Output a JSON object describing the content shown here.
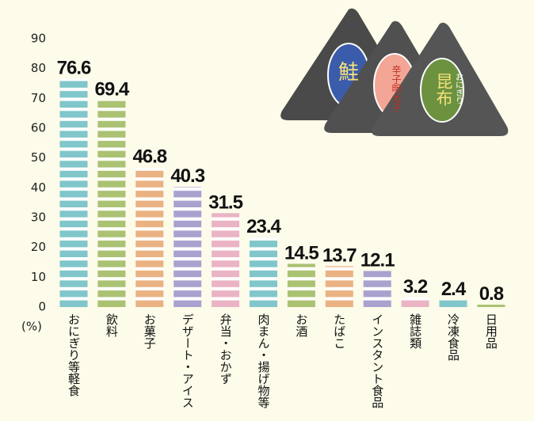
{
  "chart_data": {
    "type": "bar",
    "y_unit": "(%)",
    "categories": [
      "おにぎり等軽食",
      "飲料",
      "お菓子",
      "デザート・アイス",
      "弁当・おかず",
      "肉まん・揚げ物等",
      "お酒",
      "たばこ",
      "インスタント食品",
      "雑誌類",
      "冷凍食品",
      "日用品"
    ],
    "values": [
      76.6,
      69.4,
      46.8,
      40.3,
      31.5,
      23.4,
      14.5,
      13.7,
      12.1,
      3.2,
      2.4,
      0.8
    ],
    "colors": [
      "#80c6ca",
      "#aac272",
      "#eab283",
      "#a9a2cf",
      "#eab4c4",
      "#80c6ca",
      "#aac272",
      "#eab283",
      "#a9a2cf",
      "#eab4c4",
      "#80c6ca",
      "#aac272"
    ],
    "ylim": [
      0,
      90
    ],
    "yticks": [
      0,
      10,
      20,
      30,
      40,
      50,
      60,
      70,
      80,
      90
    ]
  },
  "illustration": {
    "labels": [
      "鮭",
      "辛子明太子",
      "昆布",
      "おにぎり"
    ]
  }
}
